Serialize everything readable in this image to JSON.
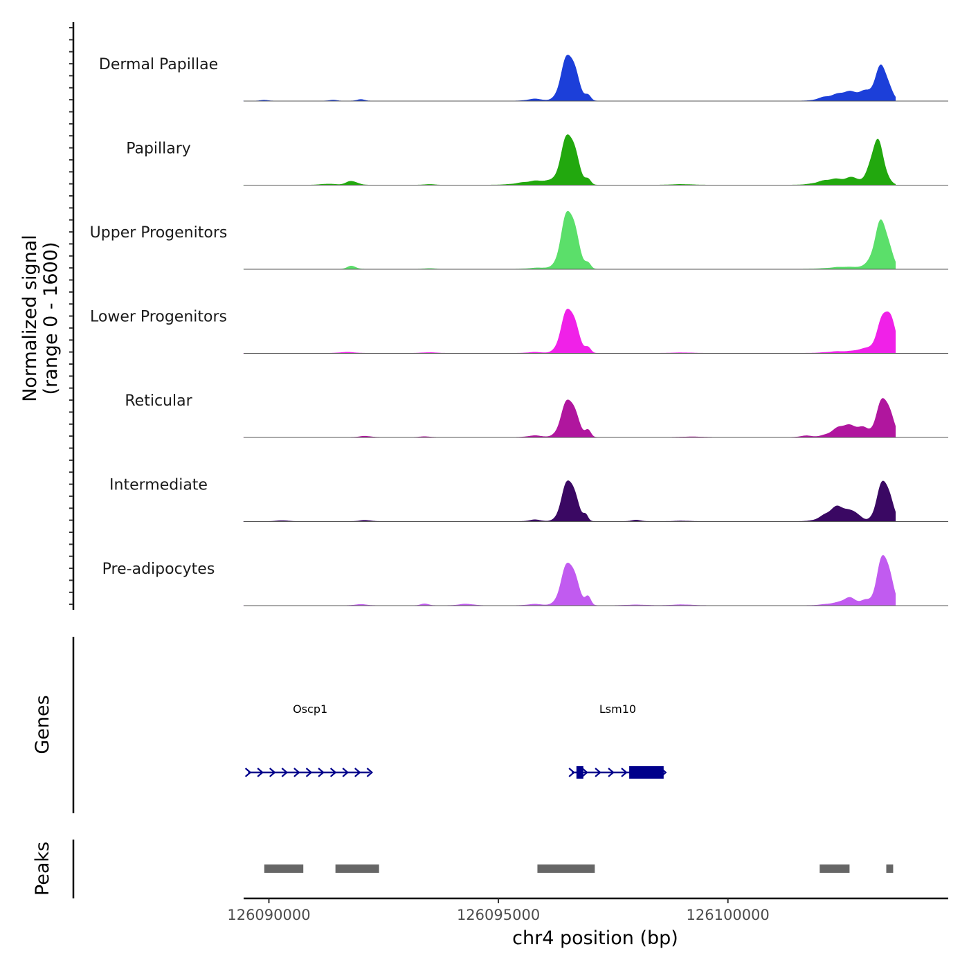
{
  "chart_data": {
    "type": "area",
    "title": "",
    "chromosome": "chr4",
    "xlabel": "chr4 position (bp)",
    "ylabel_line1": "Normalized signal",
    "ylabel_line2": "(range 0 - 1600)",
    "y_range": [
      0,
      1600
    ],
    "xlim": [
      126089450,
      126104800
    ],
    "x_ticks": [
      126090000,
      126095000,
      126100000
    ],
    "x_tick_labels": [
      "126090000",
      "126095000",
      "126100000"
    ],
    "tracks": [
      {
        "name": "Dermal Papillae",
        "color": "#1c3fd9",
        "peaks": [
          [
            126096550,
            1350,
            160
          ],
          [
            126096950,
            150,
            60
          ],
          [
            126095800,
            60,
            150
          ],
          [
            126092000,
            40,
            80
          ],
          [
            126091400,
            25,
            80
          ],
          [
            126089900,
            20,
            80
          ],
          [
            126102100,
            60,
            150
          ],
          [
            126102600,
            260,
            300
          ],
          [
            126103000,
            150,
            120
          ],
          [
            126103350,
            1050,
            140
          ]
        ]
      },
      {
        "name": "Papillary",
        "color": "#22a80e",
        "peaks": [
          [
            126096550,
            1450,
            160
          ],
          [
            126096950,
            150,
            60
          ],
          [
            126095900,
            130,
            350
          ],
          [
            126091800,
            110,
            120
          ],
          [
            126091300,
            30,
            150
          ],
          [
            126093500,
            20,
            100
          ],
          [
            126099000,
            20,
            200
          ],
          [
            126102300,
            180,
            280
          ],
          [
            126102750,
            150,
            150
          ],
          [
            126103250,
            1350,
            140
          ]
        ]
      },
      {
        "name": "Upper Progenitors",
        "color": "#5bdf6a",
        "peaks": [
          [
            126096550,
            1700,
            160
          ],
          [
            126096950,
            150,
            60
          ],
          [
            126095900,
            40,
            200
          ],
          [
            126091800,
            90,
            90
          ],
          [
            126093500,
            20,
            100
          ],
          [
            126102500,
            60,
            300
          ],
          [
            126103000,
            50,
            150
          ],
          [
            126103350,
            1450,
            150
          ]
        ]
      },
      {
        "name": "Lower Progenitors",
        "color": "#f021e8",
        "peaks": [
          [
            126096550,
            1300,
            160
          ],
          [
            126096950,
            150,
            60
          ],
          [
            126095800,
            30,
            150
          ],
          [
            126091700,
            30,
            150
          ],
          [
            126093500,
            20,
            150
          ],
          [
            126099000,
            15,
            200
          ],
          [
            126102400,
            50,
            250
          ],
          [
            126103000,
            120,
            200
          ],
          [
            126103450,
            1300,
            160
          ]
        ]
      },
      {
        "name": "Reticular",
        "color": "#b0169e",
        "peaks": [
          [
            126096550,
            1100,
            160
          ],
          [
            126096950,
            200,
            60
          ],
          [
            126095800,
            50,
            150
          ],
          [
            126092100,
            30,
            120
          ],
          [
            126093400,
            20,
            100
          ],
          [
            126099200,
            15,
            200
          ],
          [
            126101700,
            40,
            120
          ],
          [
            126102550,
            350,
            260
          ],
          [
            126102950,
            170,
            120
          ],
          [
            126103400,
            1200,
            150
          ]
        ]
      },
      {
        "name": "Intermediate",
        "color": "#3a0863",
        "peaks": [
          [
            126096550,
            1200,
            150
          ],
          [
            126096900,
            180,
            50
          ],
          [
            126095800,
            50,
            120
          ],
          [
            126098000,
            40,
            100
          ],
          [
            126092100,
            30,
            120
          ],
          [
            126090300,
            25,
            120
          ],
          [
            126099000,
            15,
            150
          ],
          [
            126102400,
            440,
            250
          ],
          [
            126102800,
            120,
            100
          ],
          [
            126103400,
            1250,
            140
          ]
        ]
      },
      {
        "name": "Pre-adipocytes",
        "color": "#c15bf0",
        "peaks": [
          [
            126096550,
            1250,
            160
          ],
          [
            126096950,
            250,
            60
          ],
          [
            126095800,
            40,
            150
          ],
          [
            126093400,
            50,
            80
          ],
          [
            126092000,
            30,
            120
          ],
          [
            126094300,
            40,
            150
          ],
          [
            126099000,
            25,
            200
          ],
          [
            126098000,
            20,
            200
          ],
          [
            126102300,
            60,
            200
          ],
          [
            126102650,
            200,
            150
          ],
          [
            126103000,
            130,
            100
          ],
          [
            126103400,
            1550,
            140
          ]
        ]
      }
    ],
    "genes_track": {
      "label": "Genes",
      "color": "#00008b",
      "genes": [
        {
          "name": "Oscp1",
          "start": 126089550,
          "end": 126092200,
          "strand": "+",
          "exons": [],
          "label_pos": 126090900
        },
        {
          "name": "Lsm10",
          "start": 126096600,
          "end": 126098600,
          "strand": "+",
          "exons": [
            [
              126096700,
              126096850
            ],
            [
              126097850,
              126098600
            ]
          ],
          "label_pos": 126097600
        }
      ]
    },
    "peaks_track": {
      "label": "Peaks",
      "color": "#666666",
      "regions": [
        [
          126089900,
          126090750
        ],
        [
          126091450,
          126092400
        ],
        [
          126095850,
          126097100
        ],
        [
          126102000,
          126102650
        ],
        [
          126103450,
          126103600
        ]
      ]
    }
  }
}
